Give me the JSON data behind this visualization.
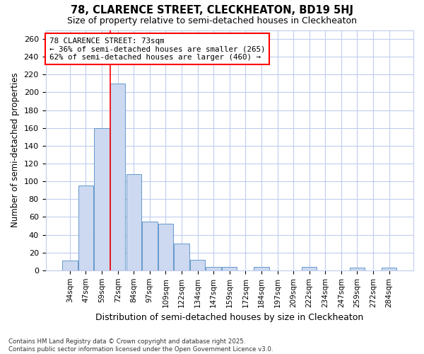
{
  "title1": "78, CLARENCE STREET, CLECKHEATON, BD19 5HJ",
  "title2": "Size of property relative to semi-detached houses in Cleckheaton",
  "xlabel": "Distribution of semi-detached houses by size in Cleckheaton",
  "ylabel": "Number of semi-detached properties",
  "bar_color": "#ccd9f0",
  "bar_edge_color": "#6699cc",
  "categories": [
    "34sqm",
    "47sqm",
    "59sqm",
    "72sqm",
    "84sqm",
    "97sqm",
    "109sqm",
    "122sqm",
    "134sqm",
    "147sqm",
    "159sqm",
    "172sqm",
    "184sqm",
    "197sqm",
    "209sqm",
    "222sqm",
    "234sqm",
    "247sqm",
    "259sqm",
    "272sqm",
    "284sqm"
  ],
  "values": [
    11,
    95,
    160,
    210,
    108,
    55,
    52,
    30,
    12,
    4,
    4,
    0,
    4,
    0,
    0,
    4,
    0,
    0,
    3,
    0,
    3
  ],
  "red_line_x": 3,
  "annotation_title": "78 CLARENCE STREET: 73sqm",
  "annotation_line1": "← 36% of semi-detached houses are smaller (265)",
  "annotation_line2": "62% of semi-detached houses are larger (460) →",
  "ylim": [
    0,
    270
  ],
  "yticks": [
    0,
    20,
    40,
    60,
    80,
    100,
    120,
    140,
    160,
    180,
    200,
    220,
    240,
    260
  ],
  "background_color": "#ffffff",
  "grid_color": "#c0ccee",
  "footer1": "Contains HM Land Registry data © Crown copyright and database right 2025.",
  "footer2": "Contains public sector information licensed under the Open Government Licence v3.0."
}
